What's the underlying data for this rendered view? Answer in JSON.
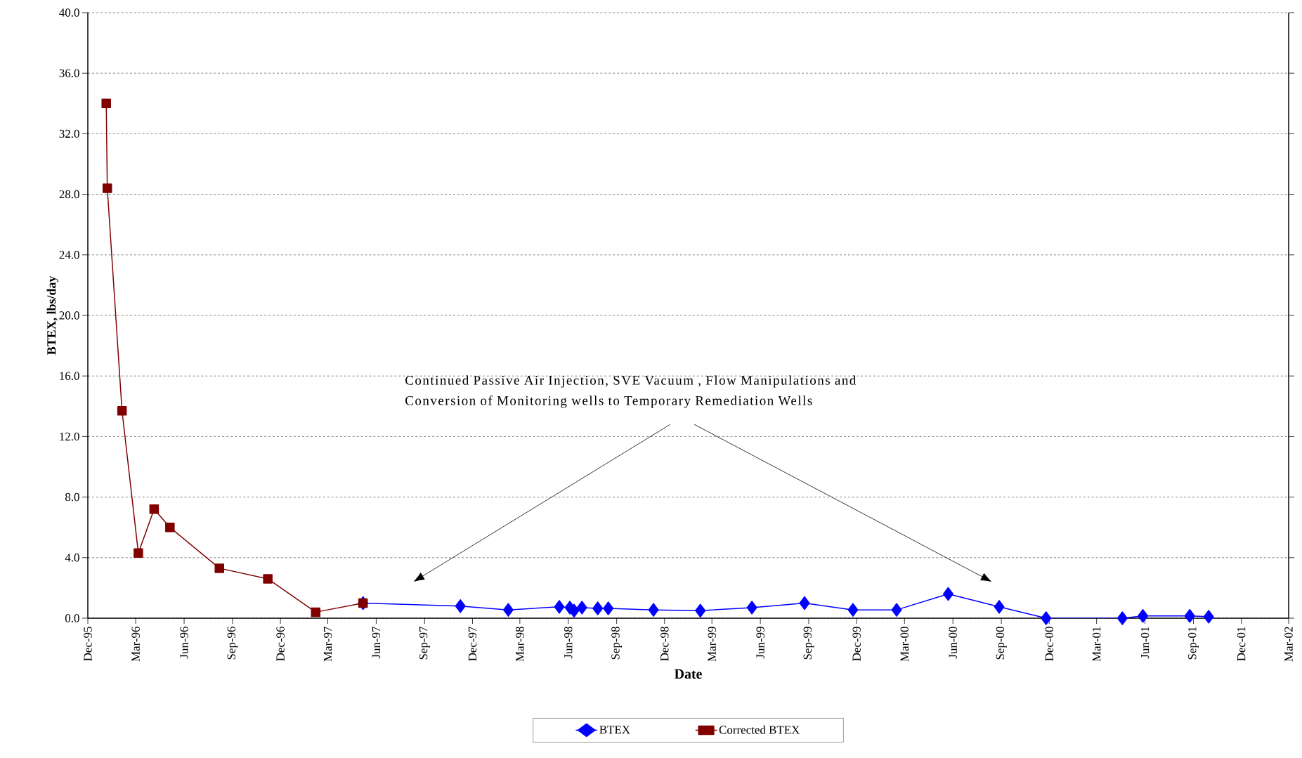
{
  "chart_data": {
    "type": "line",
    "xlabel": "Date",
    "ylabel": "BTEX, lbs/day",
    "annotations": [
      "Continued  Passive Air Injection, SVE Vacuum , Flow  Manipulations and\nConversion of Monitoring wells to Temporary Remediation Wells"
    ],
    "xlim": [
      "1995-12-01",
      "2002-03-01"
    ],
    "xticks": [
      {
        "value": "1995-12-01",
        "label": "Dec-95"
      },
      {
        "value": "1996-03-01",
        "label": "Mar-96"
      },
      {
        "value": "1996-06-01",
        "label": "Jun-96"
      },
      {
        "value": "1996-09-01",
        "label": "Sep-96"
      },
      {
        "value": "1996-12-01",
        "label": "Dec-96"
      },
      {
        "value": "1997-03-01",
        "label": "Mar-97"
      },
      {
        "value": "1997-06-01",
        "label": "Jun-97"
      },
      {
        "value": "1997-09-01",
        "label": "Sep-97"
      },
      {
        "value": "1997-12-01",
        "label": "Dec-97"
      },
      {
        "value": "1998-03-01",
        "label": "Mar-98"
      },
      {
        "value": "1998-06-01",
        "label": "Jun-98"
      },
      {
        "value": "1998-09-01",
        "label": "Sep-98"
      },
      {
        "value": "1998-12-01",
        "label": "Dec-98"
      },
      {
        "value": "1999-03-01",
        "label": "Mar-99"
      },
      {
        "value": "1999-06-01",
        "label": "Jun-99"
      },
      {
        "value": "1999-09-01",
        "label": "Sep-99"
      },
      {
        "value": "1999-12-01",
        "label": "Dec-99"
      },
      {
        "value": "2000-03-01",
        "label": "Mar-00"
      },
      {
        "value": "2000-06-01",
        "label": "Jun-00"
      },
      {
        "value": "2000-09-01",
        "label": "Sep-00"
      },
      {
        "value": "2000-12-01",
        "label": "Dec-00"
      },
      {
        "value": "2001-03-01",
        "label": "Mar-01"
      },
      {
        "value": "2001-06-01",
        "label": "Jun-01"
      },
      {
        "value": "2001-09-01",
        "label": "Sep-01"
      },
      {
        "value": "2001-12-01",
        "label": "Dec-01"
      },
      {
        "value": "2002-03-01",
        "label": "Mar-02"
      }
    ],
    "ylim": [
      0,
      40
    ],
    "yticks": [
      {
        "value": 0,
        "label": "0.0"
      },
      {
        "value": 4,
        "label": "4.0"
      },
      {
        "value": 8,
        "label": "8.0"
      },
      {
        "value": 12,
        "label": "12.0"
      },
      {
        "value": 16,
        "label": "16.0"
      },
      {
        "value": 20,
        "label": "20.0"
      },
      {
        "value": 24,
        "label": "24.0"
      },
      {
        "value": 28,
        "label": "28.0"
      },
      {
        "value": 32,
        "label": "32.0"
      },
      {
        "value": 36,
        "label": "36.0"
      },
      {
        "value": 40,
        "label": "40.0"
      }
    ],
    "grid": "y",
    "legend": "bottom",
    "series": [
      {
        "name": "BTEX",
        "color": "#0000ff",
        "marker": "diamond",
        "x": [
          "1997-05-07",
          "1997-11-08",
          "1998-02-07",
          "1998-05-15",
          "1998-06-04",
          "1998-06-12",
          "1998-06-27",
          "1998-07-27",
          "1998-08-16",
          "1998-11-10",
          "1999-02-07",
          "1999-05-16",
          "1999-08-24",
          "1999-11-24",
          "2000-02-15",
          "2000-05-23",
          "2000-08-28",
          "2000-11-25",
          "2001-04-19",
          "2001-05-28",
          "2001-08-25",
          "2001-09-30"
        ],
        "values": [
          1.0,
          0.8,
          0.55,
          0.75,
          0.7,
          0.5,
          0.7,
          0.65,
          0.65,
          0.55,
          0.5,
          0.7,
          1.0,
          0.55,
          0.55,
          1.6,
          0.75,
          0.0,
          0.0,
          0.15,
          0.15,
          0.1
        ]
      },
      {
        "name": "Corrected BTEX",
        "color": "#800000",
        "marker": "square",
        "x": [
          "1996-01-05",
          "1996-01-07",
          "1996-02-04",
          "1996-03-06",
          "1996-04-05",
          "1996-05-05",
          "1996-08-07",
          "1996-11-07",
          "1997-02-06",
          "1997-05-07"
        ],
        "values": [
          34.0,
          28.4,
          13.7,
          4.3,
          7.2,
          6.0,
          3.3,
          2.6,
          0.4,
          1.0
        ]
      }
    ]
  }
}
